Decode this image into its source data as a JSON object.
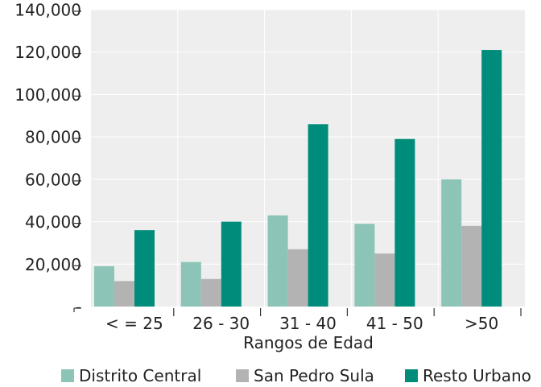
{
  "chart_data": {
    "type": "bar",
    "title": "",
    "xlabel": "Rangos de Edad",
    "ylabel": "",
    "categories": [
      "< = 25",
      "26 - 30",
      "31 - 40",
      "41 - 50",
      ">50"
    ],
    "series": [
      {
        "name": "Distrito Central",
        "color": "#8cc4b7",
        "values": [
          19000,
          21000,
          43000,
          39000,
          60000
        ]
      },
      {
        "name": "San Pedro Sula",
        "color": "#b3b3b3",
        "values": [
          12000,
          13000,
          27000,
          25000,
          38000
        ]
      },
      {
        "name": "Resto Urbano",
        "color": "#008c7a",
        "values": [
          36000,
          40000,
          86000,
          79000,
          121000
        ]
      }
    ],
    "ylim": [
      0,
      140000
    ],
    "yticks": [
      0,
      20000,
      40000,
      60000,
      80000,
      100000,
      120000,
      140000
    ],
    "ytick_labels": [
      "-",
      "20,000",
      "40,000",
      "60,000",
      "80,000",
      "100,000",
      "120,000",
      "140,000"
    ],
    "grid": true,
    "plot_background": "#eeeeee",
    "legend": "bottom"
  }
}
